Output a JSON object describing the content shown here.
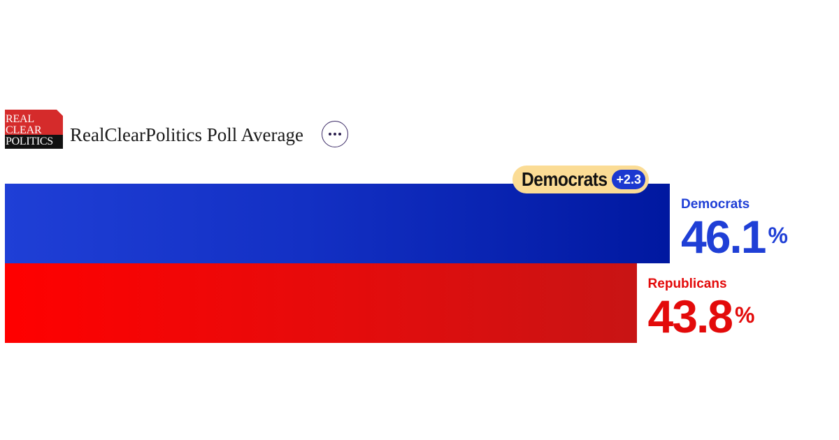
{
  "header": {
    "logo_lines": [
      "REAL",
      "CLEAR",
      "POLITICS"
    ],
    "title": "RealClearPolitics Poll Average",
    "more_icon": "more-horizontal-icon"
  },
  "chart_data": {
    "type": "bar",
    "orientation": "horizontal",
    "categories": [
      "Democrats",
      "Republicans"
    ],
    "values": [
      46.1,
      43.8
    ],
    "value_display": [
      "46.1",
      "43.8"
    ],
    "unit": "%",
    "colors": [
      "#1f3fd6",
      "#e30a0a"
    ],
    "leader": {
      "party": "Democrats",
      "margin": "+2.3"
    },
    "title": "",
    "xlabel": "",
    "ylabel": "",
    "grid": false
  }
}
